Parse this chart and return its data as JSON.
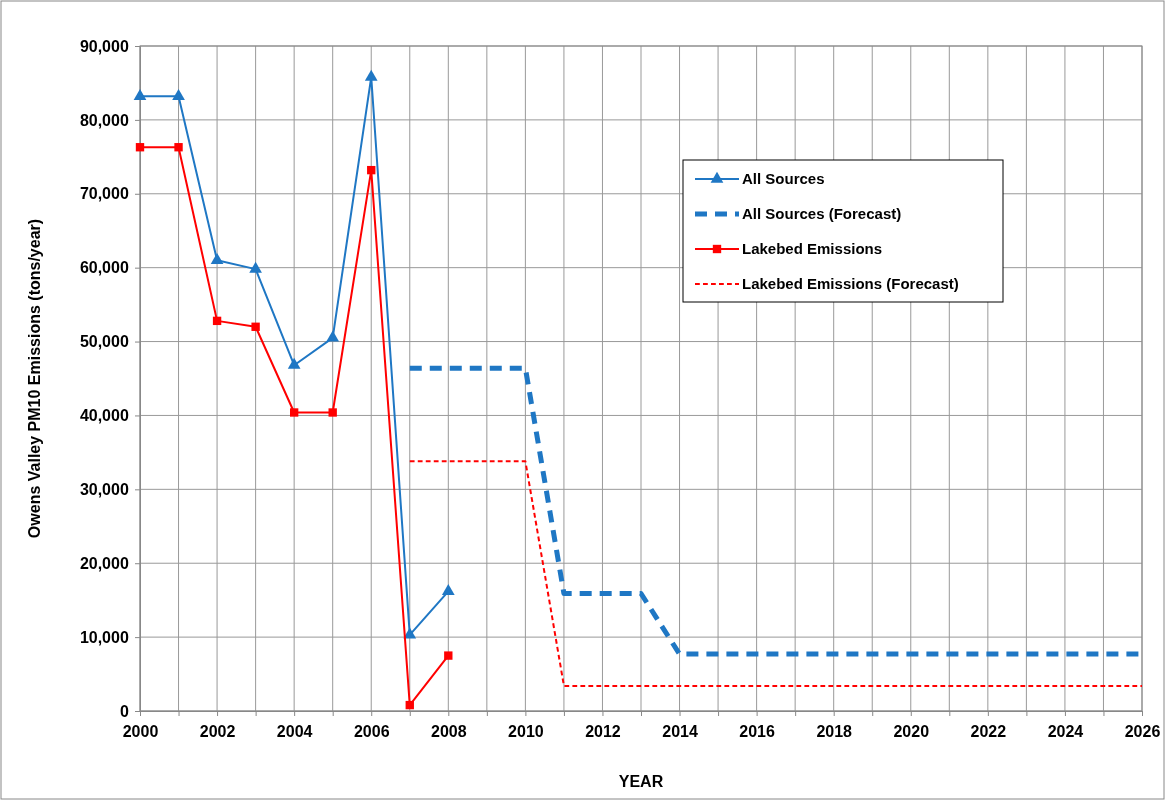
{
  "chart_data": {
    "type": "line",
    "xlabel": "YEAR",
    "ylabel": "Owens Valley PM10 Emissions (tons/year)",
    "xlim": [
      2000,
      2026
    ],
    "xticks": [
      2000,
      {
        "value": 2001,
        "label": null
      },
      2002,
      {
        "value": 2003,
        "label": null
      },
      2004,
      {
        "value": 2005,
        "label": null
      },
      2006,
      {
        "value": 2007,
        "label": null
      },
      2008,
      {
        "value": 2009,
        "label": null
      },
      2010,
      {
        "value": 2011,
        "label": null
      },
      2012,
      {
        "value": 2013,
        "label": null
      },
      2014,
      {
        "value": 2015,
        "label": null
      },
      2016,
      {
        "value": 2017,
        "label": null
      },
      2018,
      {
        "value": 2019,
        "label": null
      },
      2020,
      {
        "value": 2021,
        "label": null
      },
      2022,
      {
        "value": 2023,
        "label": null
      },
      2024,
      {
        "value": 2025,
        "label": null
      },
      2026
    ],
    "ylim": [
      0,
      90000
    ],
    "yticks": [
      {
        "value": 0,
        "label": "0"
      },
      {
        "value": 10000,
        "label": "10,000"
      },
      {
        "value": 20000,
        "label": "20,000"
      },
      {
        "value": 30000,
        "label": "30,000"
      },
      {
        "value": 40000,
        "label": "40,000"
      },
      {
        "value": 50000,
        "label": "50,000"
      },
      {
        "value": 60000,
        "label": "60,000"
      },
      {
        "value": 70000,
        "label": "70,000"
      },
      {
        "value": 80000,
        "label": "80,000"
      },
      {
        "value": 90000,
        "label": "90,000"
      }
    ],
    "grid": true,
    "legend": "top right",
    "series": [
      {
        "name": "All Sources",
        "color": "#1f77c4",
        "marker": "triangle",
        "line_style": "solid",
        "x": [
          2000,
          2001,
          2002,
          2003,
          2004,
          2005,
          2006,
          2007,
          2008
        ],
        "values": [
          83200,
          83200,
          61000,
          59800,
          46800,
          50500,
          85800,
          10300,
          16200
        ]
      },
      {
        "name": "All Sources (Forecast)",
        "color": "#1f77c4",
        "marker": "none",
        "line_style": "dashed",
        "x": [
          2007,
          2010,
          2011,
          2013,
          2014,
          2026
        ],
        "values": [
          46400,
          46400,
          15900,
          15900,
          7700,
          7700
        ]
      },
      {
        "name": "Lakebed Emissions",
        "color": "#ff0000",
        "marker": "square",
        "line_style": "solid",
        "x": [
          2000,
          2001,
          2002,
          2003,
          2004,
          2005,
          2006,
          2007,
          2008
        ],
        "values": [
          76300,
          76300,
          52800,
          52000,
          40400,
          40400,
          73200,
          800,
          7500
        ]
      },
      {
        "name": "Lakebed Emissions (Forecast)",
        "color": "#ff0000",
        "marker": "none",
        "line_style": "dashed",
        "x": [
          2007,
          2010,
          2011,
          2026
        ],
        "values": [
          33800,
          33800,
          3400,
          3400
        ]
      }
    ]
  }
}
